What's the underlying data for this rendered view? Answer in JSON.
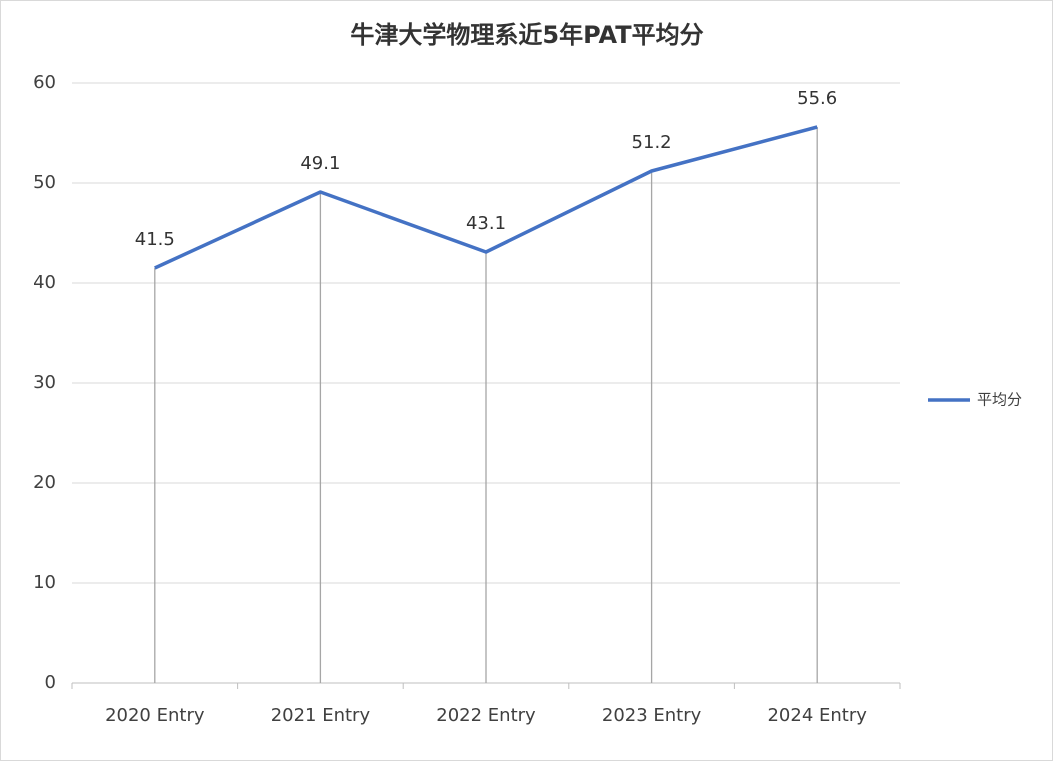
{
  "chart_data": {
    "type": "line",
    "title": "牛津大学物理系近5年PAT平均分",
    "categories": [
      "2020 Entry",
      "2021 Entry",
      "2022 Entry",
      "2023 Entry",
      "2024 Entry"
    ],
    "series": [
      {
        "name": "平均分",
        "color": "#4472c4",
        "values": [
          41.5,
          49.1,
          43.1,
          51.2,
          55.6
        ]
      }
    ],
    "ylim": [
      0,
      60
    ],
    "yticks": [
      0,
      10,
      20,
      30,
      40,
      50,
      60
    ],
    "grid": true,
    "drop_lines": true,
    "legend": "right"
  }
}
